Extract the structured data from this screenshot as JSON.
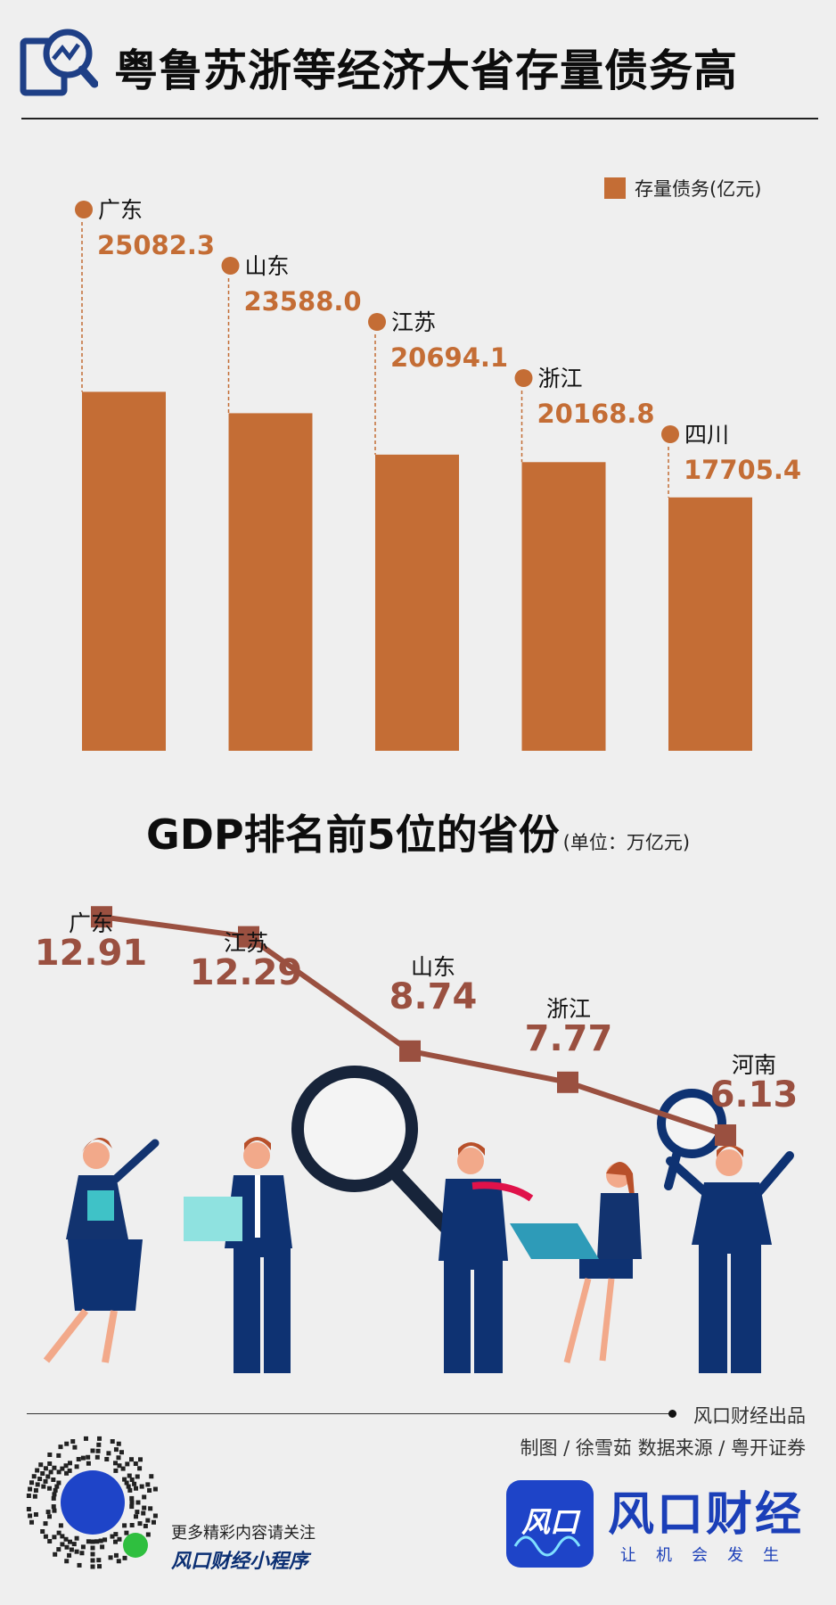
{
  "header": {
    "title": "粤鲁苏浙等经济大省存量债务高"
  },
  "colors": {
    "bar": "#c46d35",
    "line": "#9a5040",
    "navy": "#0e3272",
    "brand_blue": "#1b3fb8"
  },
  "chart_data": [
    {
      "type": "bar",
      "categories": [
        "广东",
        "山东",
        "江苏",
        "浙江",
        "四川"
      ],
      "values": [
        25082.3,
        23588.0,
        20694.1,
        20168.8,
        17705.4
      ],
      "value_labels": [
        "25082.3",
        "23588.0",
        "20694.1",
        "20168.8",
        "17705.4"
      ],
      "series": [
        {
          "name": "存量债务(亿元)"
        }
      ],
      "legend": "top-right",
      "title": "",
      "grid": false
    },
    {
      "type": "line",
      "title": "GDP排名前5位的省份",
      "unit": "(单位：万亿元)",
      "categories": [
        "广东",
        "江苏",
        "山东",
        "浙江",
        "河南"
      ],
      "values": [
        12.91,
        12.29,
        8.74,
        7.77,
        6.13
      ],
      "value_labels": [
        "12.91",
        "12.29",
        "8.74",
        "7.77",
        "6.13"
      ],
      "grid": false
    }
  ],
  "footer": {
    "producer": "风口财经出品",
    "credits": "制图 / 徐雪茹    数据来源 / 粤开证券",
    "follow_text": "更多精彩内容请关注",
    "mini_program": "风口财经小程序",
    "brand_icon_text": "风口",
    "brand_name": "风口财经",
    "brand_slogan": "让机会发生"
  }
}
